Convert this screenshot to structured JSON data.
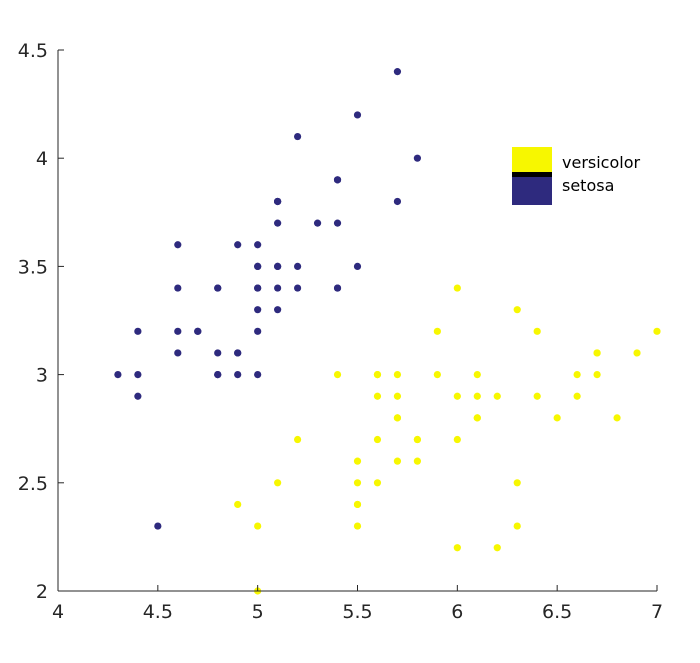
{
  "chart_data": {
    "type": "scatter",
    "title": "",
    "xlabel": "",
    "ylabel": "",
    "xlim": [
      4,
      7
    ],
    "ylim": [
      2,
      4.5
    ],
    "x_ticks": [
      "4",
      "4.5",
      "5",
      "5.5",
      "6",
      "6.5",
      "7"
    ],
    "y_ticks": [
      "2",
      "2.5",
      "3",
      "3.5",
      "4",
      "4.5"
    ],
    "grid": false,
    "legend_position": "top-right",
    "series": [
      {
        "name": "versicolor",
        "color": "#f7f700",
        "points": [
          [
            7.0,
            3.2
          ],
          [
            6.4,
            3.2
          ],
          [
            6.9,
            3.1
          ],
          [
            5.5,
            2.3
          ],
          [
            6.5,
            2.8
          ],
          [
            5.7,
            2.8
          ],
          [
            6.3,
            3.3
          ],
          [
            4.9,
            2.4
          ],
          [
            6.6,
            2.9
          ],
          [
            5.2,
            2.7
          ],
          [
            5.0,
            2.0
          ],
          [
            5.9,
            3.0
          ],
          [
            6.0,
            2.2
          ],
          [
            6.1,
            2.9
          ],
          [
            5.6,
            2.9
          ],
          [
            6.7,
            3.1
          ],
          [
            5.6,
            3.0
          ],
          [
            5.8,
            2.7
          ],
          [
            6.2,
            2.2
          ],
          [
            5.6,
            2.5
          ],
          [
            5.9,
            3.2
          ],
          [
            6.1,
            2.8
          ],
          [
            6.3,
            2.5
          ],
          [
            6.1,
            2.8
          ],
          [
            6.4,
            2.9
          ],
          [
            6.6,
            3.0
          ],
          [
            6.8,
            2.8
          ],
          [
            6.7,
            3.0
          ],
          [
            6.0,
            2.9
          ],
          [
            5.7,
            2.6
          ],
          [
            5.5,
            2.4
          ],
          [
            5.5,
            2.4
          ],
          [
            5.8,
            2.7
          ],
          [
            6.0,
            2.7
          ],
          [
            5.4,
            3.0
          ],
          [
            6.0,
            3.4
          ],
          [
            6.7,
            3.1
          ],
          [
            6.3,
            2.3
          ],
          [
            5.6,
            3.0
          ],
          [
            5.5,
            2.5
          ],
          [
            5.5,
            2.6
          ],
          [
            6.1,
            3.0
          ],
          [
            5.8,
            2.6
          ],
          [
            5.0,
            2.3
          ],
          [
            5.6,
            2.7
          ],
          [
            5.7,
            3.0
          ],
          [
            5.7,
            2.9
          ],
          [
            6.2,
            2.9
          ],
          [
            5.1,
            2.5
          ],
          [
            5.7,
            2.8
          ]
        ]
      },
      {
        "name": "setosa",
        "color": "#2e2a7e",
        "points": [
          [
            5.1,
            3.5
          ],
          [
            4.9,
            3.0
          ],
          [
            4.7,
            3.2
          ],
          [
            4.6,
            3.1
          ],
          [
            5.0,
            3.6
          ],
          [
            5.4,
            3.9
          ],
          [
            4.6,
            3.4
          ],
          [
            5.0,
            3.4
          ],
          [
            4.4,
            2.9
          ],
          [
            4.9,
            3.1
          ],
          [
            5.4,
            3.7
          ],
          [
            4.8,
            3.4
          ],
          [
            4.8,
            3.0
          ],
          [
            4.3,
            3.0
          ],
          [
            5.8,
            4.0
          ],
          [
            5.7,
            4.4
          ],
          [
            5.4,
            3.9
          ],
          [
            5.1,
            3.5
          ],
          [
            5.7,
            3.8
          ],
          [
            5.1,
            3.8
          ],
          [
            5.4,
            3.4
          ],
          [
            5.1,
            3.7
          ],
          [
            4.6,
            3.6
          ],
          [
            5.1,
            3.3
          ],
          [
            4.8,
            3.4
          ],
          [
            5.0,
            3.0
          ],
          [
            5.0,
            3.4
          ],
          [
            5.2,
            3.5
          ],
          [
            5.2,
            3.4
          ],
          [
            4.7,
            3.2
          ],
          [
            4.8,
            3.1
          ],
          [
            5.4,
            3.4
          ],
          [
            5.2,
            4.1
          ],
          [
            5.5,
            4.2
          ],
          [
            4.9,
            3.1
          ],
          [
            5.0,
            3.2
          ],
          [
            5.5,
            3.5
          ],
          [
            4.9,
            3.6
          ],
          [
            4.4,
            3.0
          ],
          [
            5.1,
            3.4
          ],
          [
            5.0,
            3.5
          ],
          [
            4.5,
            2.3
          ],
          [
            4.4,
            3.2
          ],
          [
            5.0,
            3.5
          ],
          [
            5.1,
            3.8
          ],
          [
            4.8,
            3.0
          ],
          [
            5.1,
            3.8
          ],
          [
            4.6,
            3.2
          ],
          [
            5.3,
            3.7
          ],
          [
            5.0,
            3.3
          ]
        ]
      }
    ]
  }
}
